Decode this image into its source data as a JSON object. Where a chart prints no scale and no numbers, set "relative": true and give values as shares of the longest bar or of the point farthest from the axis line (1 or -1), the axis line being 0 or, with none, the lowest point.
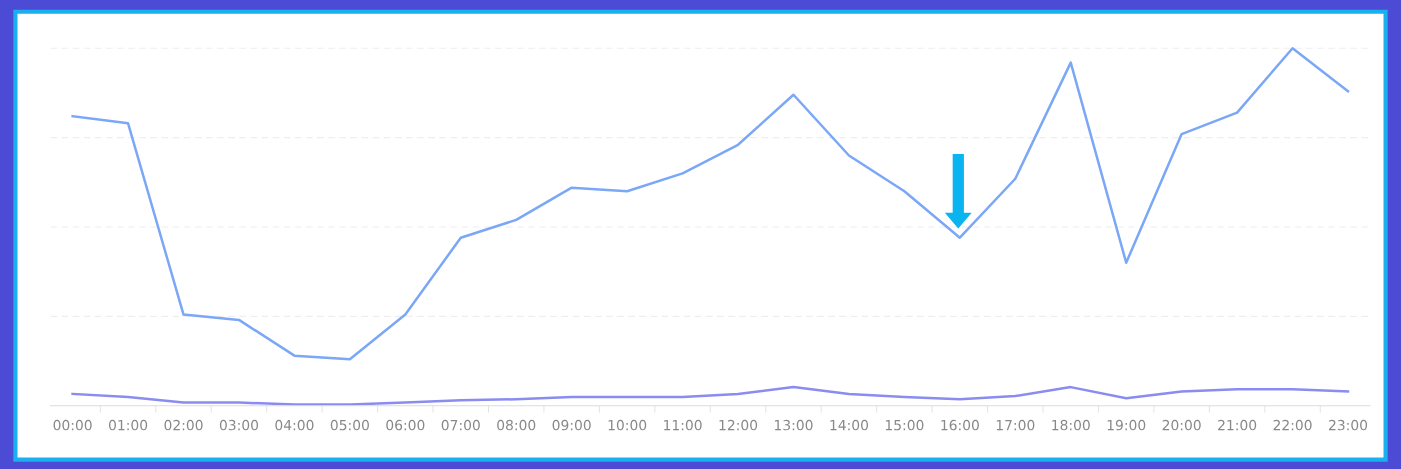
{
  "chart_data": {
    "type": "line",
    "relative": true,
    "grid": "y",
    "marker": "none",
    "line_style": "solid",
    "categories": [
      "00:00",
      "01:00",
      "02:00",
      "03:00",
      "04:00",
      "05:00",
      "06:00",
      "07:00",
      "08:00",
      "09:00",
      "10:00",
      "11:00",
      "12:00",
      "13:00",
      "14:00",
      "15:00",
      "16:00",
      "17:00",
      "18:00",
      "19:00",
      "20:00",
      "21:00",
      "22:00",
      "23:00"
    ],
    "series": [
      {
        "color": "#7ba7f7",
        "values": [
          0.81,
          0.79,
          0.255,
          0.24,
          0.14,
          0.13,
          0.255,
          0.47,
          0.52,
          0.61,
          0.6,
          0.65,
          0.73,
          0.87,
          0.7,
          0.6,
          0.47,
          0.635,
          0.96,
          0.4,
          0.76,
          0.82,
          1.0,
          0.88
        ]
      },
      {
        "color": "#8a8cf0",
        "values": [
          0.033,
          0.024,
          0.009,
          0.009,
          0.003,
          0.003,
          0.009,
          0.015,
          0.018,
          0.024,
          0.024,
          0.024,
          0.033,
          0.052,
          0.033,
          0.024,
          0.018,
          0.027,
          0.052,
          0.021,
          0.04,
          0.046,
          0.046,
          0.04
        ]
      }
    ]
  }
}
